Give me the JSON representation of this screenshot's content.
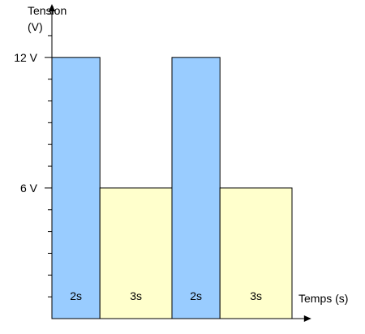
{
  "chart_data": {
    "type": "bar",
    "ylabel_line1": "Tension",
    "ylabel_line2": "(V)",
    "xlabel": "Temps (s)",
    "ytick_labels": [
      {
        "value": 12,
        "label": "12 V"
      },
      {
        "value": 6,
        "label": "6 V"
      }
    ],
    "ylim": [
      0,
      14
    ],
    "minor_tick_step": 1,
    "grid": false,
    "segments": [
      {
        "start": 0,
        "duration": 2,
        "value": 12,
        "label": "2s",
        "color": "#99ccff"
      },
      {
        "start": 2,
        "duration": 3,
        "value": 6,
        "label": "3s",
        "color": "#ffffcc"
      },
      {
        "start": 5,
        "duration": 2,
        "value": 12,
        "label": "2s",
        "color": "#99ccff"
      },
      {
        "start": 7,
        "duration": 3,
        "value": 6,
        "label": "3s",
        "color": "#ffffcc"
      }
    ],
    "xlim": [
      0,
      10.5
    ],
    "axis_color": "#000000",
    "bar_outline_color": "#000000"
  }
}
